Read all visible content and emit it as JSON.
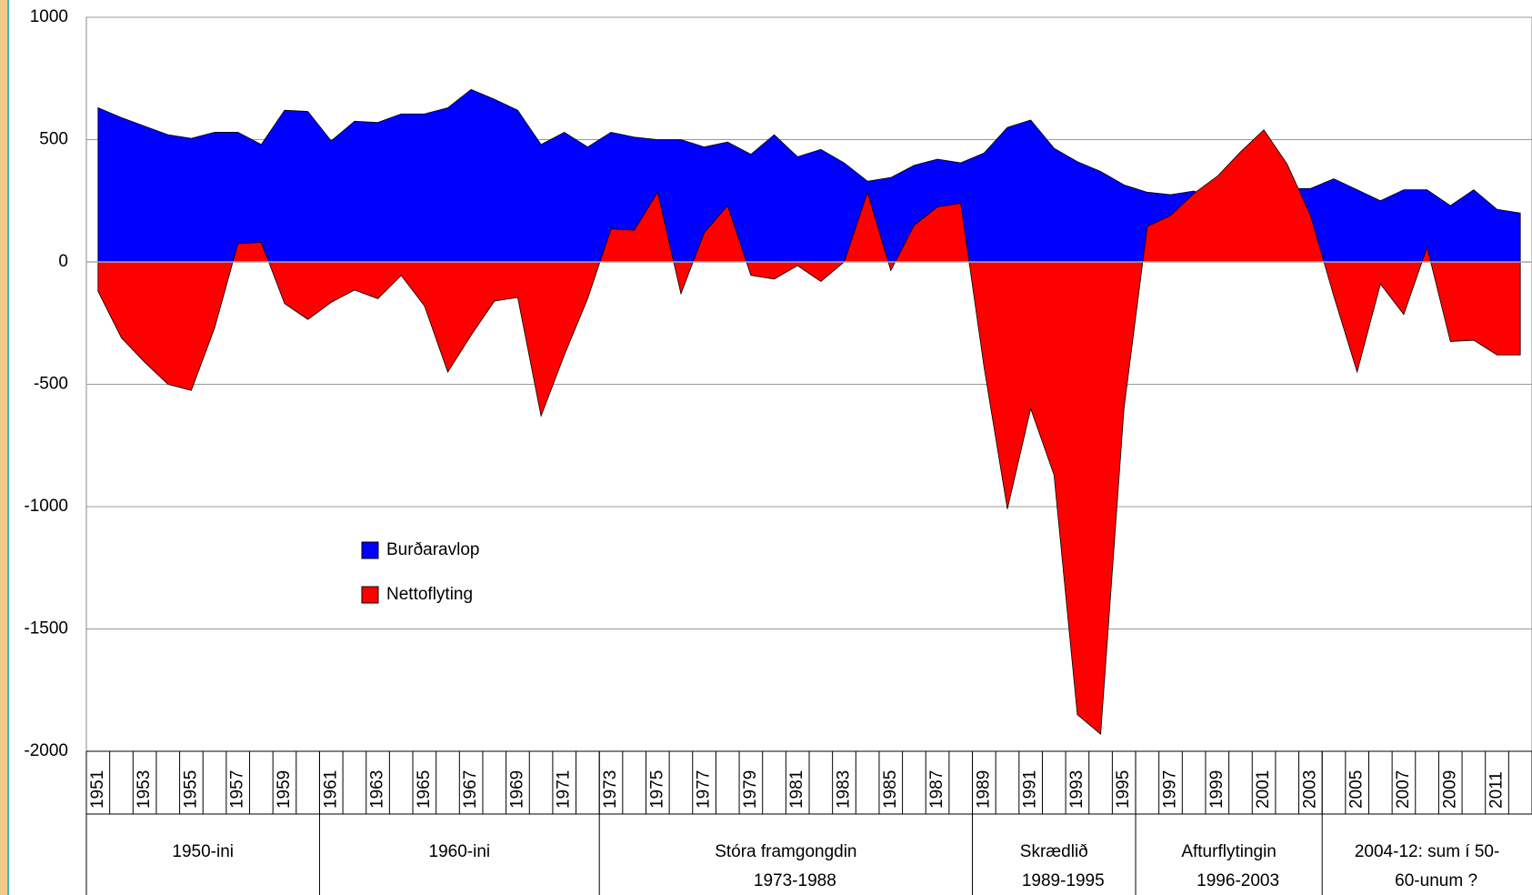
{
  "chart_data": {
    "type": "area",
    "categories": [
      "1951",
      null,
      "1953",
      null,
      "1955",
      null,
      "1957",
      null,
      "1959",
      null,
      "1961",
      null,
      "1963",
      null,
      "1965",
      null,
      "1967",
      null,
      "1969",
      null,
      "1971",
      null,
      "1973",
      null,
      "1975",
      null,
      "1977",
      null,
      "1979",
      null,
      "1981",
      null,
      "1983",
      null,
      "1985",
      null,
      "1987",
      null,
      "1989",
      null,
      "1991",
      null,
      "1993",
      null,
      "1995",
      null,
      "1997",
      null,
      "1999",
      null,
      "2001",
      null,
      "2003",
      null,
      "2005",
      null,
      "2007",
      null,
      "2009",
      null,
      "2011",
      null
    ],
    "series": [
      {
        "name": "Burðaravlop",
        "color": "#0000ff",
        "values": [
          630,
          590,
          555,
          520,
          505,
          530,
          530,
          480,
          620,
          615,
          495,
          575,
          570,
          605,
          605,
          630,
          705,
          665,
          620,
          480,
          530,
          470,
          530,
          510,
          500,
          500,
          470,
          490,
          440,
          520,
          430,
          460,
          405,
          330,
          345,
          395,
          420,
          405,
          445,
          550,
          580,
          465,
          410,
          370,
          315,
          285,
          275,
          290,
          250,
          280,
          320,
          300,
          300,
          340,
          295,
          250,
          295,
          295,
          230,
          295,
          215,
          200
        ]
      },
      {
        "name": "Nettoflyting",
        "color": "#ff0000",
        "values": [
          -120,
          -310,
          -410,
          -500,
          -525,
          -270,
          75,
          80,
          -170,
          -235,
          -165,
          -115,
          -150,
          -55,
          -180,
          -450,
          -300,
          -160,
          -145,
          -630,
          -380,
          -150,
          135,
          130,
          285,
          -130,
          120,
          230,
          -55,
          -70,
          -15,
          -80,
          0,
          285,
          -35,
          150,
          225,
          240,
          -430,
          -1010,
          -600,
          -870,
          -1850,
          -1930,
          -600,
          145,
          190,
          280,
          350,
          450,
          540,
          400,
          190,
          -140,
          -450,
          -90,
          -215,
          60,
          -325,
          -320,
          -380,
          -380
        ]
      }
    ],
    "groups": [
      [
        "1950-ini"
      ],
      [
        "1960-ini"
      ],
      [
        "Stóra framgongdin",
        "1973-1988"
      ],
      [
        "Skrædlið",
        "1989-1995"
      ],
      [
        "Afturflytingin",
        "1996-2003"
      ],
      [
        "2004-12: sum í 50-",
        "60-unum ?"
      ]
    ],
    "ylim": [
      -2000,
      1000
    ],
    "yticks": [
      -2000,
      -1500,
      -1000,
      -500,
      0,
      500,
      1000
    ],
    "grid": true
  }
}
